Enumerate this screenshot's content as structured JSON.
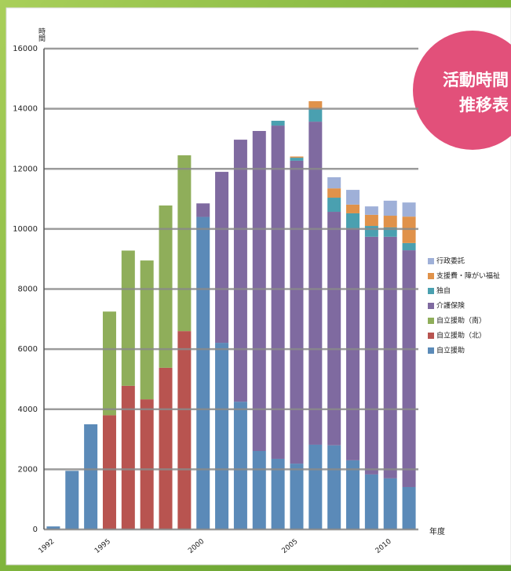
{
  "chart_data": {
    "type": "stacked-bar",
    "title": [
      "活動時間",
      "推移表"
    ],
    "y_label": "時間",
    "x_label": "年度",
    "categories": [
      "1992",
      null,
      null,
      "1995",
      null,
      null,
      null,
      null,
      "2000",
      null,
      null,
      null,
      null,
      "2005",
      null,
      null,
      null,
      null,
      "2010",
      null
    ],
    "series": [
      {
        "name": "自立援助",
        "color": "#5b8ab8",
        "values": [
          100,
          1950,
          3500,
          null,
          null,
          null,
          null,
          null,
          10400,
          6210,
          4250,
          2610,
          2350,
          2190,
          2820,
          2800,
          2300,
          1830,
          1700,
          1410
        ]
      },
      {
        "name": "自立援助（北）",
        "color": "#b85450",
        "values": [
          null,
          null,
          null,
          3800,
          4780,
          4330,
          5380,
          6600,
          null,
          null,
          null,
          null,
          null,
          null,
          null,
          null,
          null,
          null,
          null,
          null
        ]
      },
      {
        "name": "自立援助（南）",
        "color": "#8fae5a",
        "values": [
          null,
          null,
          null,
          3450,
          4500,
          4620,
          5400,
          5850,
          null,
          null,
          null,
          null,
          null,
          null,
          null,
          null,
          null,
          null,
          null,
          null
        ]
      },
      {
        "name": "介護保険",
        "color": "#7f6aa0",
        "values": [
          null,
          null,
          null,
          null,
          null,
          null,
          null,
          null,
          450,
          5690,
          8720,
          10650,
          11090,
          10080,
          10750,
          7770,
          7720,
          7910,
          8040,
          7880
        ]
      },
      {
        "name": "独自",
        "color": "#4aa0b0",
        "values": [
          null,
          null,
          null,
          null,
          null,
          null,
          null,
          null,
          null,
          null,
          null,
          null,
          160,
          100,
          420,
          470,
          500,
          360,
          310,
          240
        ]
      },
      {
        "name": "支援費・障がい福祉",
        "color": "#e0924a",
        "values": [
          null,
          null,
          null,
          null,
          null,
          null,
          null,
          null,
          null,
          null,
          null,
          null,
          null,
          40,
          260,
          310,
          290,
          370,
          390,
          880
        ]
      },
      {
        "name": "行政委託",
        "color": "#9fb0d8",
        "values": [
          null,
          null,
          null,
          null,
          null,
          null,
          null,
          null,
          null,
          null,
          null,
          null,
          null,
          null,
          null,
          370,
          490,
          280,
          500,
          470
        ]
      }
    ],
    "ylim": [
      0,
      16000
    ],
    "yticks": [
      0,
      2000,
      4000,
      6000,
      8000,
      10000,
      12000,
      14000,
      16000
    ],
    "grid": true,
    "legend": "right"
  }
}
